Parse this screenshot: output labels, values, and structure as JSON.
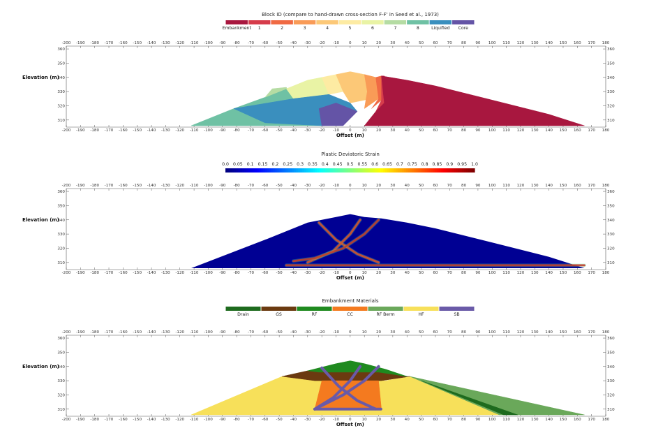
{
  "chart_data": [
    {
      "type": "area",
      "title": "Block ID (compare to hand-drawn cross-section F-F' in Seed et al., 1973)",
      "xlabel": "Offset (m)",
      "ylabel": "Elevation (m)",
      "xlim": [
        -200,
        180
      ],
      "ylim": [
        305,
        362
      ],
      "x_ticks": [
        -200,
        -190,
        -180,
        -170,
        -160,
        -150,
        -140,
        -130,
        -120,
        -110,
        -100,
        -90,
        -80,
        -70,
        -60,
        -50,
        -40,
        -30,
        -20,
        -10,
        0,
        10,
        20,
        30,
        40,
        50,
        60,
        70,
        80,
        90,
        100,
        110,
        120,
        130,
        140,
        150,
        160,
        170,
        180
      ],
      "y_ticks": [
        310,
        320,
        330,
        340,
        350,
        360
      ],
      "legend": [
        {
          "name": "Embankment",
          "color": "#a8173f"
        },
        {
          "name": "1",
          "color": "#d63c4b"
        },
        {
          "name": "2",
          "color": "#f06a44"
        },
        {
          "name": "3",
          "color": "#f99b57"
        },
        {
          "name": "4",
          "color": "#fcc877"
        },
        {
          "name": "5",
          "color": "#fdeba3"
        },
        {
          "name": "6",
          "color": "#e9f3a5"
        },
        {
          "name": "7",
          "color": "#b5dca3"
        },
        {
          "name": "8",
          "color": "#6fc1a4"
        },
        {
          "name": "Liquified",
          "color": "#3a8fbe"
        },
        {
          "name": "Core",
          "color": "#6454a6"
        }
      ],
      "regions": [
        {
          "block": "8",
          "color": "#6fc1a4",
          "points": [
            [
              -112,
              306
            ],
            [
              -82,
              318
            ],
            [
              -60,
              326
            ],
            [
              -45,
              332
            ],
            [
              -20,
              324
            ],
            [
              -18,
              306
            ]
          ]
        },
        {
          "block": "7",
          "color": "#b5dca3",
          "points": [
            [
              -60,
              326
            ],
            [
              -55,
              332
            ],
            [
              -45,
              333
            ],
            [
              -40,
              325
            ],
            [
              -45,
              332
            ]
          ]
        },
        {
          "block": "6",
          "color": "#e9f3a5",
          "points": [
            [
              -45,
              332
            ],
            [
              -30,
              338
            ],
            [
              -20,
              340
            ],
            [
              -15,
              328
            ],
            [
              -40,
              325
            ]
          ]
        },
        {
          "block": "5",
          "color": "#fdeba3",
          "points": [
            [
              -20,
              340
            ],
            [
              -10,
              342
            ],
            [
              -5,
              330
            ],
            [
              -15,
              328
            ]
          ]
        },
        {
          "block": "4",
          "color": "#fcc877",
          "points": [
            [
              -10,
              342
            ],
            [
              0,
              344
            ],
            [
              10,
              342
            ],
            [
              18,
              340
            ],
            [
              15,
              325
            ],
            [
              0,
              322
            ],
            [
              -5,
              330
            ]
          ]
        },
        {
          "block": "3",
          "color": "#f99b57",
          "points": [
            [
              10,
              342
            ],
            [
              18,
              340
            ],
            [
              20,
              325
            ],
            [
              10,
              318
            ],
            [
              12,
              330
            ]
          ]
        },
        {
          "block": "2",
          "color": "#f06a44",
          "points": [
            [
              18,
              340
            ],
            [
              22,
              341
            ],
            [
              22,
              324
            ],
            [
              15,
              318
            ],
            [
              20,
              325
            ]
          ]
        },
        {
          "block": "1",
          "color": "#d63c4b",
          "points": [
            [
              22,
              341
            ],
            [
              24,
              341
            ],
            [
              24,
              322
            ],
            [
              18,
              316
            ],
            [
              22,
              324
            ]
          ]
        },
        {
          "block": "Liquified",
          "color": "#3a8fbe",
          "points": [
            [
              -82,
              318
            ],
            [
              -40,
              325
            ],
            [
              -15,
              328
            ],
            [
              0,
              322
            ],
            [
              5,
              316
            ],
            [
              -20,
              306
            ],
            [
              -60,
              308
            ]
          ]
        },
        {
          "block": "Core",
          "color": "#6454a6",
          "points": [
            [
              -20,
              306
            ],
            [
              -22,
              318
            ],
            [
              -10,
              322
            ],
            [
              5,
              316
            ],
            [
              -5,
              306
            ]
          ]
        },
        {
          "block": "Embankment",
          "color": "#a8173f",
          "points": [
            [
              22,
              341
            ],
            [
              40,
              338
            ],
            [
              60,
              334
            ],
            [
              100,
              324
            ],
            [
              140,
              314
            ],
            [
              165,
              306
            ],
            [
              10,
              306
            ],
            [
              18,
              316
            ],
            [
              24,
              322
            ]
          ]
        }
      ]
    },
    {
      "type": "heatmap",
      "title": "Plastic Deviatoric Strain",
      "xlabel": "Offset (m)",
      "ylabel": "Elevation (m)",
      "xlim": [
        -200,
        180
      ],
      "ylim": [
        305,
        362
      ],
      "x_ticks": [
        -200,
        -190,
        -180,
        -170,
        -160,
        -150,
        -140,
        -130,
        -120,
        -110,
        -100,
        -90,
        -80,
        -70,
        -60,
        -50,
        -40,
        -30,
        -20,
        -10,
        0,
        10,
        20,
        30,
        40,
        50,
        60,
        70,
        80,
        90,
        100,
        110,
        120,
        130,
        140,
        150,
        160,
        170,
        180
      ],
      "y_ticks": [
        310,
        320,
        330,
        340,
        350,
        360
      ],
      "colorbar_ticks": [
        "0.0",
        "0.05",
        "0.1",
        "0.15",
        "0.2",
        "0.25",
        "0.3",
        "0.35",
        "0.4",
        "0.45",
        "0.5",
        "0.55",
        "0.6",
        "0.65",
        "0.7",
        "0.75",
        "0.8",
        "0.85",
        "0.9",
        "0.95",
        "1.0"
      ],
      "colormap": [
        "#00007f",
        "#0000ff",
        "#007fff",
        "#00ffff",
        "#7fff7f",
        "#ffff00",
        "#ff7f00",
        "#ff0000",
        "#7f0000"
      ],
      "background_value": 0.02,
      "shear_bands": [
        {
          "points": [
            [
              -22,
              338
            ],
            [
              -10,
              326
            ],
            [
              5,
              316
            ],
            [
              20,
              310
            ]
          ],
          "value": 0.85
        },
        {
          "points": [
            [
              7,
              340
            ],
            [
              0,
              330
            ],
            [
              -12,
              318
            ],
            [
              -30,
              310
            ]
          ],
          "value": 0.85
        },
        {
          "points": [
            [
              20,
              340
            ],
            [
              10,
              330
            ],
            [
              -5,
              320
            ],
            [
              -25,
              313
            ],
            [
              -40,
              311
            ]
          ],
          "value": 0.9
        },
        {
          "points": [
            [
              -45,
              308
            ],
            [
              165,
              308
            ]
          ],
          "value": 0.9
        }
      ]
    },
    {
      "type": "area",
      "title": "Embankment Materials",
      "xlabel": "Offset (m)",
      "ylabel": "Elevation (m)",
      "xlim": [
        -200,
        180
      ],
      "ylim": [
        305,
        362
      ],
      "x_ticks": [
        -200,
        -190,
        -180,
        -170,
        -160,
        -150,
        -140,
        -130,
        -120,
        -110,
        -100,
        -90,
        -80,
        -70,
        -60,
        -50,
        -40,
        -30,
        -20,
        -10,
        0,
        10,
        20,
        30,
        40,
        50,
        60,
        70,
        80,
        90,
        100,
        110,
        120,
        130,
        140,
        150,
        160,
        170,
        180
      ],
      "y_ticks": [
        310,
        320,
        330,
        340,
        350,
        360
      ],
      "legend": [
        {
          "name": "Drain",
          "color": "#1e6b1e"
        },
        {
          "name": "GS",
          "color": "#6b3a10"
        },
        {
          "name": "RF",
          "color": "#1f8a1f"
        },
        {
          "name": "CC",
          "color": "#f47a1f"
        },
        {
          "name": "RF Berm",
          "color": "#6aa85a"
        },
        {
          "name": "HF",
          "color": "#f7e05a"
        },
        {
          "name": "SB",
          "color": "#6a5aa8"
        }
      ],
      "regions": [
        {
          "material": "HF",
          "color": "#f7e05a",
          "points": [
            [
              -112,
              306
            ],
            [
              -48,
              333
            ],
            [
              -25,
              330
            ],
            [
              25,
              330
            ],
            [
              42,
              333
            ],
            [
              105,
              306
            ]
          ]
        },
        {
          "material": "RF Berm",
          "color": "#6aa85a",
          "points": [
            [
              42,
              333
            ],
            [
              105,
              306
            ],
            [
              165,
              306
            ]
          ]
        },
        {
          "material": "Drain",
          "color": "#1e6b1e",
          "points": [
            [
              50,
              330
            ],
            [
              108,
              306
            ],
            [
              118,
              306
            ]
          ]
        },
        {
          "material": "GS",
          "color": "#6b3a10",
          "points": [
            [
              -48,
              333
            ],
            [
              -30,
              337
            ],
            [
              -22,
              336
            ],
            [
              20,
              336
            ],
            [
              40,
              333
            ],
            [
              42,
              333
            ],
            [
              22,
              330
            ],
            [
              -25,
              330
            ]
          ]
        },
        {
          "material": "RF",
          "color": "#1f8a1f",
          "points": [
            [
              -30,
              337
            ],
            [
              -10,
              342
            ],
            [
              0,
              344
            ],
            [
              10,
              342
            ],
            [
              25,
              338
            ],
            [
              40,
              333
            ],
            [
              20,
              336
            ],
            [
              -22,
              336
            ]
          ]
        },
        {
          "material": "CC",
          "color": "#f47a1f",
          "points": [
            [
              -20,
              330
            ],
            [
              20,
              330
            ],
            [
              22,
              310
            ],
            [
              -25,
              310
            ]
          ]
        }
      ],
      "shear_bands": [
        {
          "points": [
            [
              -20,
              339
            ],
            [
              -8,
              326
            ],
            [
              5,
              316
            ],
            [
              18,
              310
            ]
          ]
        },
        {
          "points": [
            [
              7,
              340
            ],
            [
              0,
              330
            ],
            [
              -12,
              318
            ],
            [
              -25,
              310
            ]
          ]
        },
        {
          "points": [
            [
              20,
              340
            ],
            [
              10,
              330
            ],
            [
              -5,
              320
            ],
            [
              -25,
              310
            ]
          ]
        },
        {
          "points": [
            [
              -25,
              310
            ],
            [
              22,
              310
            ]
          ]
        }
      ]
    }
  ]
}
